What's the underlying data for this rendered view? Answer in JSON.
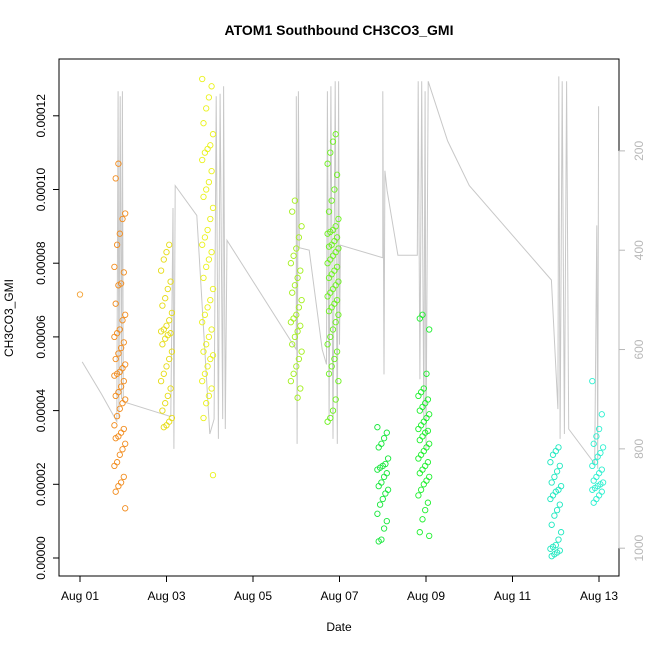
{
  "chart_data": {
    "type": "scatter",
    "title": "ATOM1 Southbound CH3CO3_GMI",
    "xlabel": "Date",
    "ylabel": "CH3CO3_GMI",
    "x_unit": "days since Aug 01",
    "xlim": [
      -0.5,
      12.5
    ],
    "ylim": [
      -4.5e-06,
      0.000135
    ],
    "x_ticks": [
      {
        "x": 0,
        "label": "Aug 01"
      },
      {
        "x": 2,
        "label": "Aug 03"
      },
      {
        "x": 4,
        "label": "Aug 05"
      },
      {
        "x": 6,
        "label": "Aug 07"
      },
      {
        "x": 8,
        "label": "Aug 09"
      },
      {
        "x": 10,
        "label": "Aug 11"
      },
      {
        "x": 12,
        "label": "Aug 13"
      }
    ],
    "y_ticks": [
      {
        "value": 0,
        "label": "0.00000"
      },
      {
        "value": 2e-05,
        "label": "0.00002"
      },
      {
        "value": 4e-05,
        "label": "0.00004"
      },
      {
        "value": 6e-05,
        "label": "0.00006"
      },
      {
        "value": 8e-05,
        "label": "0.00008"
      },
      {
        "value": 0.0001,
        "label": "0.00010"
      },
      {
        "value": 0.00012,
        "label": "0.00012"
      }
    ],
    "right_axis": {
      "description": "pressure (hPa), reversed",
      "range_top": 15,
      "range_bottom": 1056,
      "ticks": [
        {
          "value": 200,
          "label": "200"
        },
        {
          "value": 400,
          "label": "400"
        },
        {
          "value": 600,
          "label": "600"
        },
        {
          "value": 800,
          "label": "800"
        },
        {
          "value": 1000,
          "label": "1000"
        }
      ]
    },
    "pressure_line": {
      "color": "#c8c8c8",
      "points": [
        [
          0.05,
          625
        ],
        [
          0.5,
          690
        ],
        [
          0.85,
          745
        ],
        [
          0.88,
          80
        ],
        [
          0.9,
          740
        ],
        [
          0.93,
          90
        ],
        [
          0.96,
          700
        ],
        [
          0.98,
          80
        ],
        [
          1.0,
          705
        ],
        [
          2.1,
          735
        ],
        [
          2.15,
          315
        ],
        [
          2.17,
          800
        ],
        [
          2.2,
          270
        ],
        [
          2.7,
          330
        ],
        [
          3.0,
          770
        ],
        [
          3.1,
          740
        ],
        [
          3.15,
          90
        ],
        [
          3.2,
          780
        ],
        [
          3.24,
          85
        ],
        [
          3.3,
          740
        ],
        [
          3.32,
          70
        ],
        [
          3.36,
          760
        ],
        [
          3.4,
          380
        ],
        [
          5.0,
          600
        ],
        [
          5.0,
          90
        ],
        [
          5.02,
          790
        ],
        [
          5.05,
          80
        ],
        [
          5.07,
          395
        ],
        [
          5.3,
          400
        ],
        [
          5.6,
          600
        ],
        [
          5.7,
          630
        ],
        [
          5.72,
          80
        ],
        [
          5.76,
          740
        ],
        [
          5.8,
          70
        ],
        [
          5.85,
          780
        ],
        [
          5.9,
          60
        ],
        [
          5.95,
          790
        ],
        [
          5.98,
          60
        ],
        [
          6.0,
          590
        ],
        [
          6.02,
          390
        ],
        [
          7.0,
          415
        ],
        [
          7.0,
          80
        ],
        [
          7.03,
          650
        ],
        [
          7.05,
          240
        ],
        [
          7.1,
          280
        ],
        [
          7.35,
          410
        ],
        [
          7.8,
          410
        ],
        [
          7.82,
          60
        ],
        [
          7.86,
          660
        ],
        [
          7.9,
          60
        ],
        [
          7.95,
          740
        ],
        [
          7.98,
          80
        ],
        [
          8.0,
          800
        ],
        [
          8.05,
          60
        ],
        [
          8.5,
          180
        ],
        [
          9.0,
          270
        ],
        [
          10.9,
          460
        ],
        [
          11.05,
          720
        ],
        [
          11.07,
          50
        ],
        [
          11.1,
          780
        ],
        [
          11.15,
          60
        ],
        [
          11.2,
          770
        ],
        [
          11.25,
          60
        ],
        [
          11.3,
          760
        ],
        [
          11.9,
          830
        ],
        [
          11.95,
          350
        ],
        [
          11.97,
          840
        ],
        [
          11.99,
          110
        ]
      ]
    },
    "series": [
      {
        "name": "CH3CO3_GMI",
        "marker": "open-circle",
        "groups": [
          {
            "center_day": 0.0,
            "color": "#f3a132",
            "values": [
              7.15e-05
            ]
          },
          {
            "center_day": 0.92,
            "color": "#f28c1e",
            "values": [
              0.000107,
              0.000103,
              9.35e-05,
              9.2e-05,
              8.8e-05,
              8.5e-05,
              7.9e-05,
              7.75e-05,
              7.45e-05,
              7.4e-05,
              6.9e-05,
              6.6e-05,
              6.45e-05,
              6.2e-05,
              6.1e-05,
              6e-05,
              5.85e-05,
              5.7e-05,
              5.55e-05,
              5.4e-05,
              5.25e-05,
              5.15e-05,
              5.05e-05,
              5e-05,
              4.95e-05,
              4.8e-05,
              4.65e-05,
              4.5e-05,
              4.4e-05,
              4.3e-05,
              4.2e-05,
              4.05e-05,
              3.85e-05,
              3.6e-05,
              3.5e-05,
              3.4e-05,
              3.3e-05,
              3.25e-05,
              3.1e-05,
              2.95e-05,
              2.8e-05,
              2.6e-05,
              2.5e-05,
              2.2e-05,
              2.05e-05,
              1.95e-05,
              1.8e-05,
              1.35e-05
            ]
          },
          {
            "center_day": 2.0,
            "color": "#e6dc16",
            "values": [
              8.5e-05,
              8.3e-05,
              8.1e-05,
              7.8e-05,
              7.5e-05,
              7.3e-05,
              7.05e-05,
              6.85e-05,
              6.65e-05,
              6.45e-05,
              6.3e-05,
              6.2e-05,
              6.15e-05,
              6.1e-05,
              6.05e-05,
              5.95e-05,
              5.8e-05,
              5.6e-05,
              5.4e-05,
              5.2e-05,
              5e-05,
              4.8e-05,
              4.6e-05,
              4.4e-05,
              4.2e-05,
              4e-05,
              3.8e-05,
              3.7e-05,
              3.6e-05,
              3.55e-05
            ]
          },
          {
            "center_day": 2.95,
            "color": "#eaf21c",
            "values": [
              0.00013,
              0.000128,
              0.000125,
              0.000122,
              0.000118,
              0.000115,
              0.000112,
              0.000111,
              0.00011,
              0.000108,
              0.000105,
              0.000102,
              0.0001,
              9.8e-05,
              9.5e-05,
              9.2e-05,
              8.9e-05,
              8.7e-05,
              8.5e-05,
              8.3e-05,
              8.1e-05,
              7.9e-05,
              7.6e-05,
              7.3e-05,
              7e-05,
              6.8e-05,
              6.6e-05,
              6.4e-05,
              6.2e-05,
              6e-05,
              5.8e-05,
              5.6e-05,
              5.5e-05,
              5.4e-05,
              5.2e-05,
              5e-05,
              4.8e-05,
              4.6e-05,
              4.4e-05,
              4.2e-05,
              3.8e-05,
              2.25e-05
            ]
          },
          {
            "center_day": 5.0,
            "color": "#a4f01e",
            "values": [
              9.7e-05,
              9.4e-05,
              9e-05,
              8.7e-05,
              8.4e-05,
              8.2e-05,
              8e-05,
              7.8e-05,
              7.6e-05,
              7.4e-05,
              7.2e-05,
              7e-05,
              6.8e-05,
              6.6e-05,
              6.5e-05,
              6.4e-05,
              6.3e-05,
              6.15e-05,
              6e-05,
              5.8e-05,
              5.6e-05,
              5.4e-05,
              5.2e-05,
              5e-05,
              4.8e-05,
              4.6e-05,
              4.35e-05
            ]
          },
          {
            "center_day": 5.85,
            "color": "#6cf21e",
            "values": [
              0.000115,
              0.000113,
              0.00011,
              0.000107,
              0.000104,
              0.0001,
              9.7e-05,
              9.4e-05,
              9.2e-05,
              9e-05,
              8.9e-05,
              8.85e-05,
              8.8e-05,
              8.7e-05,
              8.6e-05,
              8.5e-05,
              8.45e-05,
              8.4e-05,
              8.3e-05,
              8.2e-05,
              8.1e-05,
              8e-05,
              7.9e-05,
              7.8e-05,
              7.7e-05,
              7.6e-05,
              7.5e-05,
              7.4e-05,
              7.3e-05,
              7.2e-05,
              7.1e-05,
              7e-05,
              6.9e-05,
              6.8e-05,
              6.7e-05,
              6.6e-05,
              6.4e-05,
              6.2e-05,
              6e-05,
              5.8e-05,
              5.6e-05,
              5.4e-05,
              5.2e-05,
              5e-05,
              4.8e-05,
              4.3e-05,
              4e-05,
              3.8e-05,
              3.7e-05
            ]
          },
          {
            "center_day": 7.0,
            "color": "#16e83a",
            "values": [
              3.55e-05,
              3.4e-05,
              3.25e-05,
              3.1e-05,
              3e-05,
              2.7e-05,
              2.55e-05,
              2.5e-05,
              2.45e-05,
              2.4e-05,
              2.3e-05,
              2.2e-05,
              2.05e-05,
              1.95e-05,
              1.85e-05,
              1.75e-05,
              1.6e-05,
              1.45e-05,
              1.2e-05,
              1e-05,
              8e-06,
              5e-06,
              4.5e-06
            ]
          },
          {
            "center_day": 7.95,
            "color": "#1ef02e",
            "values": [
              6.6e-05,
              6.5e-05,
              6.2e-05,
              5e-05,
              4.6e-05,
              4.5e-05,
              4.4e-05,
              4.3e-05,
              4.2e-05,
              4.1e-05,
              4e-05,
              3.9e-05,
              3.8e-05,
              3.7e-05,
              3.6e-05,
              3.5e-05,
              3.45e-05,
              3.4e-05,
              3.3e-05,
              3.2e-05,
              3.1e-05,
              3e-05,
              2.9e-05,
              2.8e-05,
              2.7e-05,
              2.6e-05,
              2.5e-05,
              2.4e-05,
              2.3e-05,
              2.2e-05,
              2.1e-05,
              2e-05,
              1.85e-05,
              1.7e-05,
              1.5e-05,
              1.3e-05,
              1.05e-05,
              7e-06,
              6e-06
            ]
          },
          {
            "center_day": 11.0,
            "color": "#1ee8c0",
            "values": [
              3e-05,
              2.9e-05,
              2.8e-05,
              2.6e-05,
              2.5e-05,
              2.35e-05,
              2.2e-05,
              2.05e-05,
              1.95e-05,
              1.85e-05,
              1.8e-05,
              1.7e-05,
              1.6e-05,
              1.45e-05,
              1.3e-05,
              1.15e-05,
              9e-06,
              7e-06,
              5e-06,
              3.5e-06,
              3e-06,
              2.5e-06,
              2e-06,
              1.5e-06,
              1e-06,
              5e-07
            ]
          },
          {
            "center_day": 11.97,
            "color": "#2ef0d0",
            "values": [
              4.8e-05,
              3.9e-05,
              3.5e-05,
              3.3e-05,
              3.1e-05,
              3e-05,
              2.85e-05,
              2.75e-05,
              2.6e-05,
              2.5e-05,
              2.4e-05,
              2.3e-05,
              2.2e-05,
              2.1e-05,
              2.05e-05,
              2e-05,
              1.95e-05,
              1.9e-05,
              1.85e-05,
              1.8e-05,
              1.7e-05,
              1.6e-05,
              1.5e-05
            ]
          }
        ]
      }
    ]
  }
}
